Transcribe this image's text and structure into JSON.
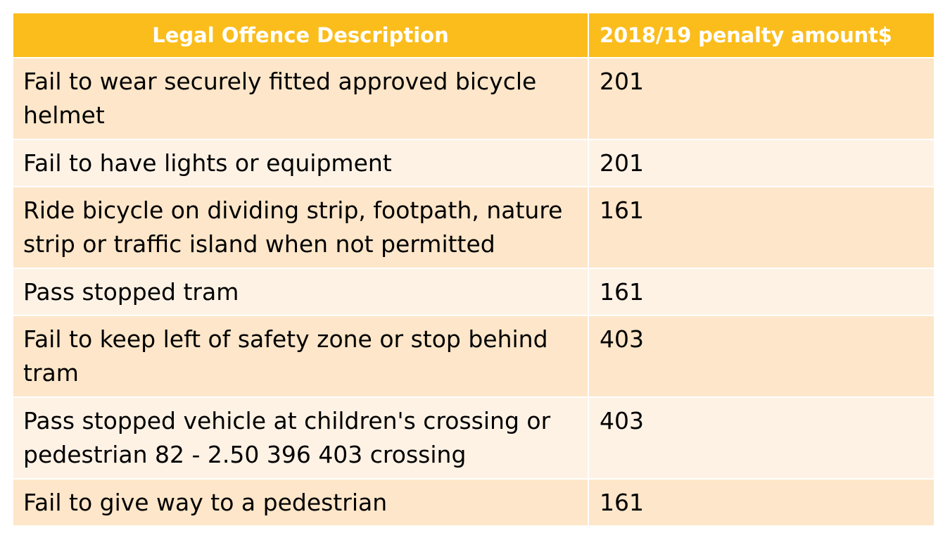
{
  "table": {
    "headers": {
      "description": "Legal Offence Description",
      "amount": "2018/19 penalty amount$"
    },
    "rows": [
      {
        "description": "Fail to wear securely fitted approved bicycle helmet",
        "amount": "201"
      },
      {
        "description": "Fail to have lights or equipment",
        "amount": "201"
      },
      {
        "description": "Ride bicycle on dividing strip, footpath, nature strip or traffic island when not permitted",
        "amount": "161"
      },
      {
        "description": "Pass stopped tram",
        "amount": "161"
      },
      {
        "description": "Fail to keep left of safety zone or stop behind tram",
        "amount": "403"
      },
      {
        "description": "Pass stopped vehicle at children's crossing or pedestrian 82 - 2.50 396 403 crossing",
        "amount": "403"
      },
      {
        "description": "Fail to give way to a pedestrian",
        "amount": "161"
      }
    ]
  },
  "colors": {
    "header_bg": "#fbbd1c",
    "row_dark_bg": "#fde6c9",
    "row_light_bg": "#fef2e5",
    "header_text": "#ffffff"
  }
}
